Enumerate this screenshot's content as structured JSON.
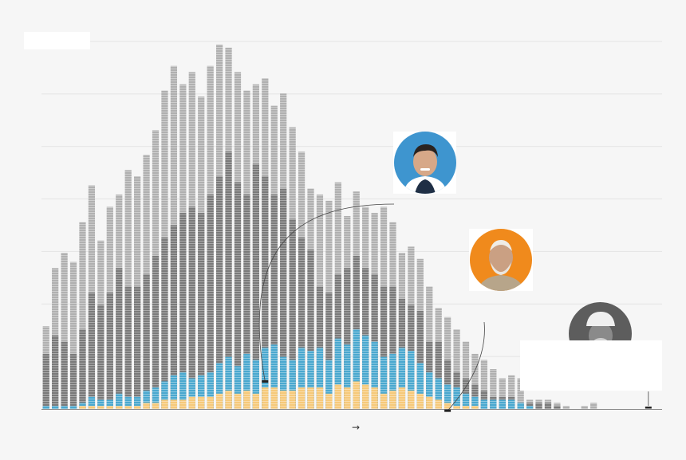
{
  "chart_data": {
    "type": "bar",
    "stacked": true,
    "title": "",
    "xlabel": "",
    "arrow_glyph": "→",
    "ylabel": "",
    "grid": true,
    "gridlines": 7,
    "colors": {
      "total": "#b0b0b0",
      "mid": "#7a7a7a",
      "blue": "#4aa8cf",
      "orange": "#f6c97a",
      "grid": "#e4e4e4",
      "axis": "#888888",
      "leader": "#444444"
    },
    "series_order": [
      "orange",
      "blue",
      "mid",
      "total"
    ],
    "ymax": 60,
    "total": [
      13.5,
      23,
      25.5,
      24,
      30.5,
      36.5,
      27.5,
      33,
      35,
      39,
      38,
      41.5,
      45.5,
      52,
      56,
      53,
      55,
      51,
      56,
      59.5,
      59,
      55,
      52,
      53,
      54,
      49.5,
      51.5,
      46,
      42,
      36,
      35,
      34,
      37,
      31.5,
      35.5,
      33,
      32,
      33,
      30.5,
      25.5,
      26.5,
      24.5,
      20,
      16.5,
      15,
      13,
      11,
      9,
      8,
      6.5,
      5,
      5.5,
      5,
      1.5,
      1.5,
      1.5,
      1,
      0.5,
      0,
      0.5,
      1,
      0,
      0,
      0,
      0,
      0,
      0,
      0
    ],
    "mid": [
      9,
      12,
      11,
      9,
      13,
      19,
      17,
      19,
      23,
      20,
      20,
      22,
      25,
      28,
      30,
      32,
      33,
      32,
      35,
      38,
      42,
      37,
      35,
      40,
      38,
      35,
      36,
      31,
      28,
      26,
      20,
      19,
      22,
      23,
      25,
      23,
      22,
      20,
      20,
      18,
      17,
      16,
      11,
      11,
      8,
      6,
      5,
      4,
      3,
      2,
      2,
      2,
      1,
      1,
      1,
      1,
      0.5,
      0,
      0,
      0,
      0,
      0,
      0,
      0,
      0,
      0,
      0,
      0
    ],
    "blue": [
      0.5,
      0.5,
      0.5,
      0.5,
      0.5,
      1.5,
      1,
      1,
      2,
      1.5,
      1.5,
      2,
      2.5,
      3,
      4,
      4.5,
      3,
      3.5,
      4,
      5,
      5.5,
      4.5,
      6,
      5.5,
      6.5,
      7,
      5.5,
      5,
      6.5,
      6,
      6.5,
      5.5,
      7.5,
      7,
      8.5,
      8,
      7.5,
      6,
      6,
      6.5,
      6.5,
      5,
      4,
      3.5,
      3,
      3,
      2,
      1.5,
      1.5,
      1.5,
      1.5,
      1.5,
      1,
      0.5,
      0,
      0,
      0,
      0,
      0,
      0,
      0,
      0,
      0,
      0,
      0,
      0,
      0,
      0
    ],
    "orange": [
      0,
      0,
      0,
      0,
      0.5,
      0.5,
      0.5,
      0.5,
      0.5,
      0.5,
      0.5,
      1,
      1,
      1.5,
      1.5,
      1.5,
      2,
      2,
      2,
      2.5,
      3,
      2.5,
      3,
      2.5,
      3.5,
      3.5,
      3,
      3,
      3.5,
      3.5,
      3.5,
      2.5,
      4,
      3.5,
      4.5,
      4,
      3.5,
      2.5,
      3,
      3.5,
      3,
      2.5,
      2,
      1.5,
      1,
      0.5,
      0.5,
      0.5,
      0,
      0,
      0,
      0,
      0,
      0,
      0,
      0,
      0,
      0,
      0,
      0,
      0,
      0,
      0,
      0,
      0,
      0,
      0,
      0
    ],
    "highlights": [
      {
        "kind": "blue-person",
        "bar_index": 24,
        "value": 4.5
      },
      {
        "kind": "orange-person",
        "bar_index": 44,
        "value": 0.5
      },
      {
        "kind": "elder-person",
        "bar_index": 66,
        "value": 0.2
      }
    ]
  }
}
